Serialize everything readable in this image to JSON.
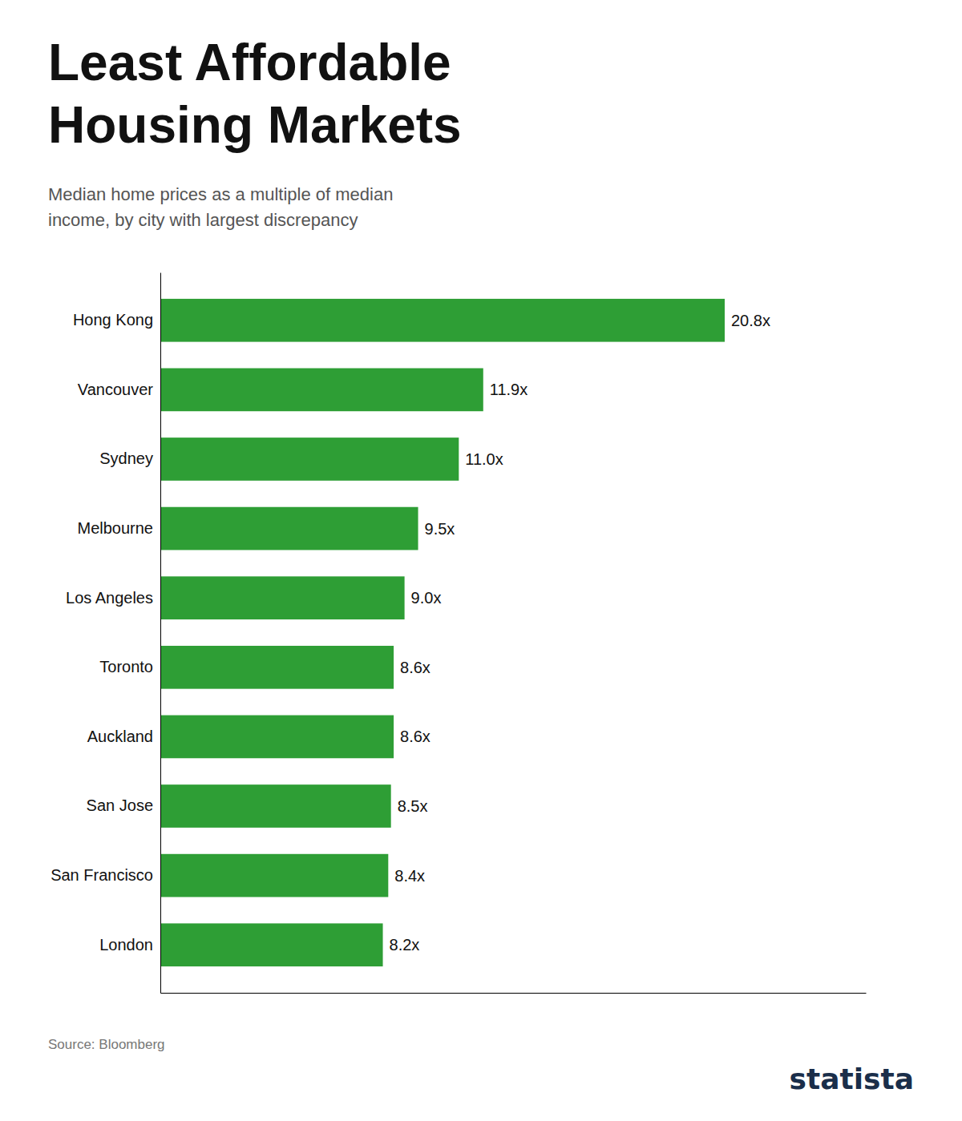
{
  "chart_data": {
    "type": "bar",
    "orientation": "horizontal",
    "title": "Least Affordable\nHousing Markets",
    "subtitle": "Median home prices as a multiple of median\nincome, by city with largest discrepancy",
    "annotations": [
      "Source: Bloomberg",
      "statista"
    ],
    "categories": [
      "Hong Kong",
      "Vancouver",
      "Sydney",
      "Melbourne",
      "Los Angeles",
      "Toronto",
      "Auckland",
      "San Jose",
      "San Francisco",
      "London"
    ],
    "values": [
      20.8,
      11.9,
      11.0,
      9.5,
      9.0,
      8.6,
      8.6,
      8.5,
      8.4,
      8.2
    ],
    "value_labels": [
      "20.8x",
      "11.9x",
      "11.0x",
      "9.5x",
      "9.0x",
      "8.6x",
      "8.6x",
      "8.5x",
      "8.4x",
      "8.2x"
    ],
    "data_labels": true,
    "color": "#2e9e35",
    "xlim": [
      0,
      26
    ],
    "tick_labels": "y",
    "grid": false
  }
}
